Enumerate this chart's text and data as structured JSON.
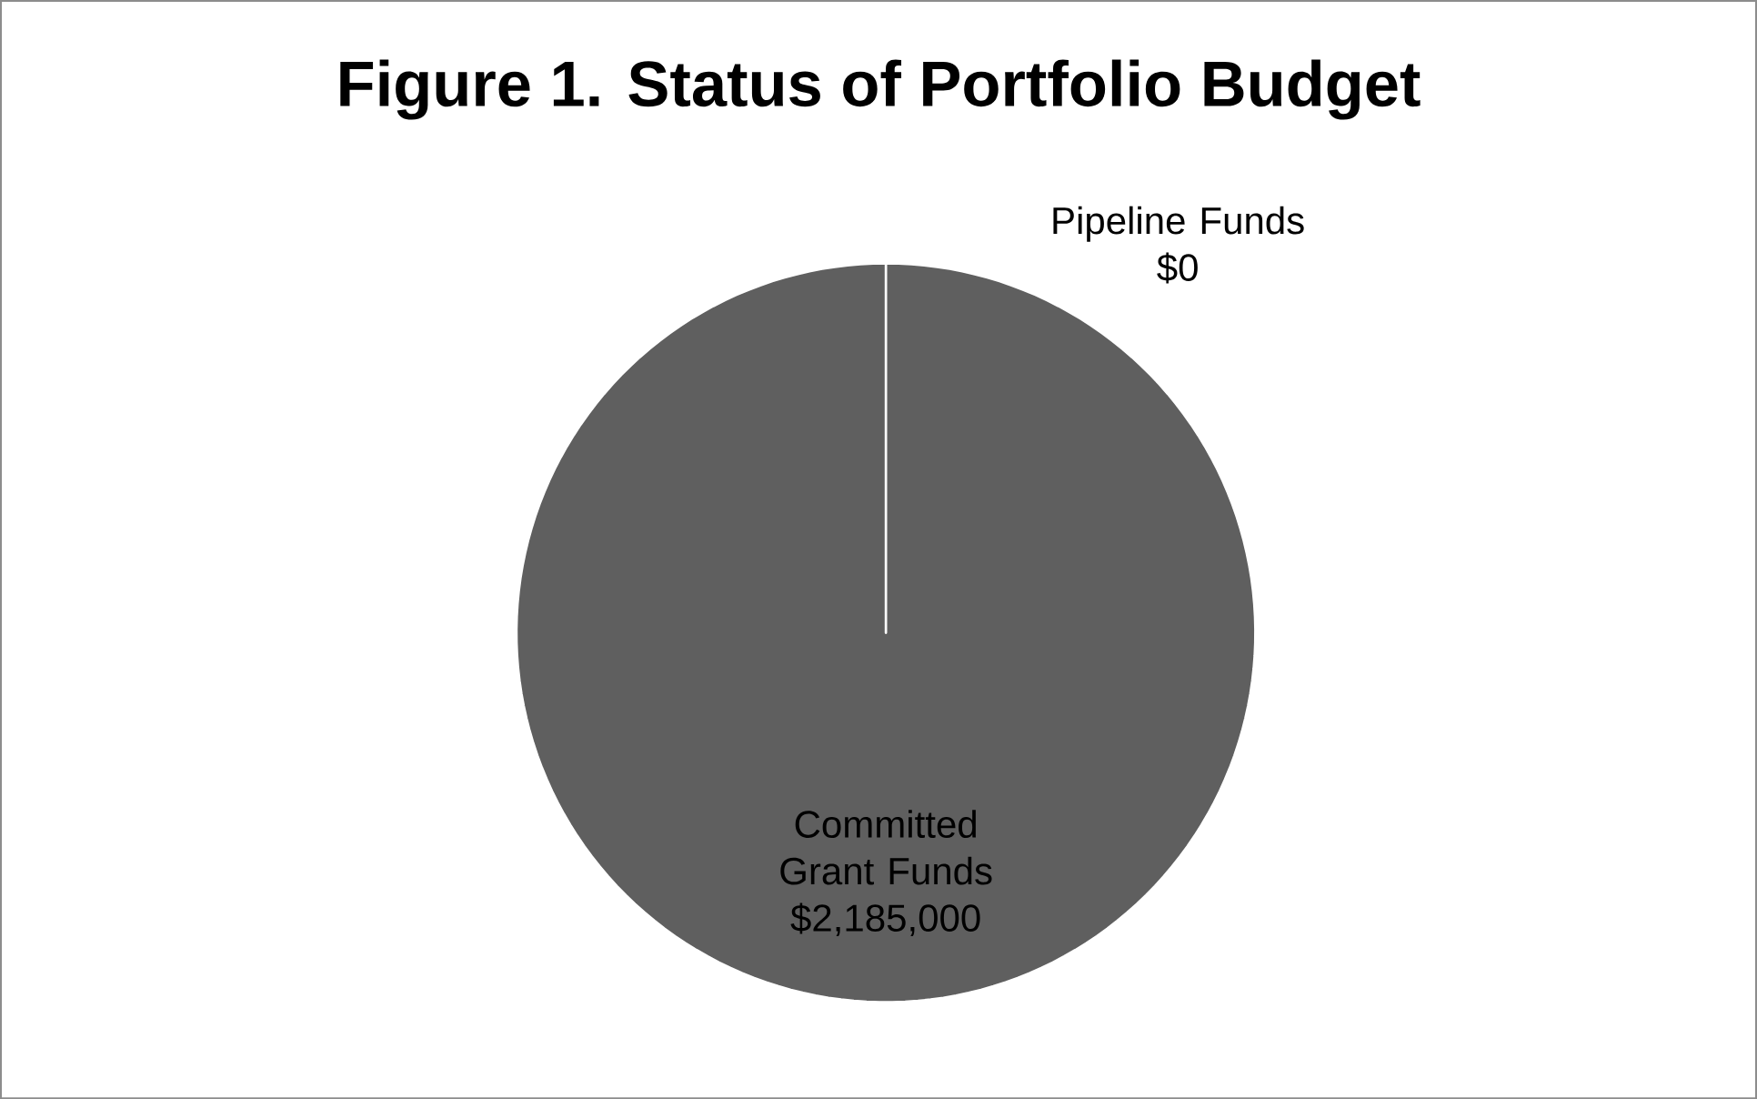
{
  "chart_data": {
    "type": "pie",
    "title": "Figure 1.  Status of Portfolio Budget",
    "categories": [
      "Pipeline Funds",
      "Committed Grant Funds"
    ],
    "values": [
      0,
      2185000
    ],
    "value_labels": [
      "$0",
      "$2,185,000"
    ],
    "colors": [
      "#5f5f5f",
      "#5f5f5f"
    ]
  }
}
